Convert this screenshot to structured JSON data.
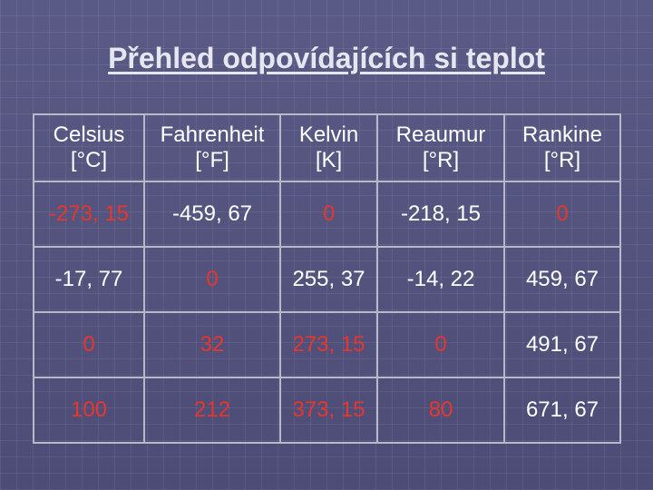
{
  "title": "Přehled odpovídajících si teplot",
  "table": {
    "header": [
      {
        "name": "Celsius",
        "unit": "[°C]"
      },
      {
        "name": "Fahrenheit",
        "unit": "[°F]"
      },
      {
        "name": "Kelvin",
        "unit": "[K]"
      },
      {
        "name": "Reaumur",
        "unit": "[°R]"
      },
      {
        "name": "Rankine",
        "unit": "[°R]"
      }
    ],
    "rows": [
      [
        {
          "text": "-273, 15",
          "color": "#e8362c"
        },
        {
          "text": "-459, 67",
          "color": "#ffffff"
        },
        {
          "text": "0",
          "color": "#e8362c"
        },
        {
          "text": "-218, 15",
          "color": "#ffffff"
        },
        {
          "text": "0",
          "color": "#e8362c"
        }
      ],
      [
        {
          "text": "-17, 77",
          "color": "#ffffff"
        },
        {
          "text": "0",
          "color": "#e8362c"
        },
        {
          "text": "255, 37",
          "color": "#ffffff"
        },
        {
          "text": "-14, 22",
          "color": "#ffffff"
        },
        {
          "text": "459, 67",
          "color": "#ffffff"
        }
      ],
      [
        {
          "text": "0",
          "color": "#e8362c"
        },
        {
          "text": "32",
          "color": "#e8362c"
        },
        {
          "text": "273, 15",
          "color": "#e8362c"
        },
        {
          "text": "0",
          "color": "#e8362c"
        },
        {
          "text": "491, 67",
          "color": "#ffffff"
        }
      ],
      [
        {
          "text": "100",
          "color": "#e8362c"
        },
        {
          "text": "212",
          "color": "#e8362c"
        },
        {
          "text": "373, 15",
          "color": "#e8362c"
        },
        {
          "text": "80",
          "color": "#e8362c"
        },
        {
          "text": "671, 67",
          "color": "#ffffff"
        }
      ]
    ]
  }
}
